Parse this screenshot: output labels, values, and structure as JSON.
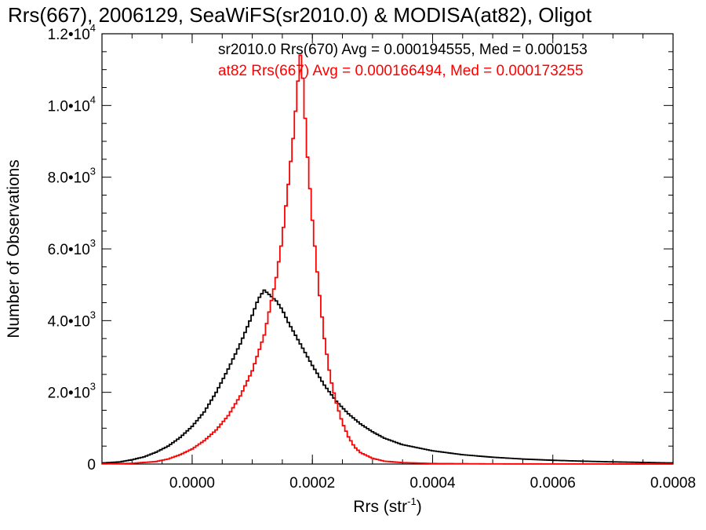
{
  "chart_data": {
    "type": "histogram",
    "title": "Rrs(667), 2006129, SeaWiFS(sr2010.0) & MODISA(at82), Oligot",
    "xlabel": "Rrs (str",
    "xlabel_sup": "-1",
    "xlabel_close": ")",
    "ylabel": "Number of Observations",
    "xlim": [
      -0.00015,
      0.0008
    ],
    "ylim": [
      0,
      12000
    ],
    "grid": false,
    "legend_placement": "top-right",
    "x_ticks": [
      {
        "value": 0.0,
        "label": "0.0000"
      },
      {
        "value": 0.0002,
        "label": "0.0002"
      },
      {
        "value": 0.0004,
        "label": "0.0004"
      },
      {
        "value": 0.0006,
        "label": "0.0006"
      },
      {
        "value": 0.0008,
        "label": "0.0008"
      }
    ],
    "y_ticks": [
      {
        "value": 0,
        "mant": "0",
        "exp": ""
      },
      {
        "value": 2000,
        "mant": "2.0•10",
        "exp": "3"
      },
      {
        "value": 4000,
        "mant": "4.0•10",
        "exp": "3"
      },
      {
        "value": 6000,
        "mant": "6.0•10",
        "exp": "3"
      },
      {
        "value": 8000,
        "mant": "8.0•10",
        "exp": "3"
      },
      {
        "value": 10000,
        "mant": "1.0•10",
        "exp": "4"
      },
      {
        "value": 12000,
        "mant": "1.2•10",
        "exp": "4"
      }
    ],
    "series": [
      {
        "legend": "sr2010.0 Rrs(670) Avg = 0.000194555, Med = 0.000153",
        "color": "#000000",
        "points": [
          [
            -0.00015,
            30
          ],
          [
            -0.00012,
            60
          ],
          [
            -0.0001,
            120
          ],
          [
            -8e-05,
            200
          ],
          [
            -6e-05,
            330
          ],
          [
            -4e-05,
            500
          ],
          [
            -2e-05,
            740
          ],
          [
            0.0,
            1050
          ],
          [
            2e-05,
            1450
          ],
          [
            4e-05,
            2000
          ],
          [
            6e-05,
            2650
          ],
          [
            8e-05,
            3350
          ],
          [
            0.0001,
            4150
          ],
          [
            0.00011,
            4600
          ],
          [
            0.00012,
            4850
          ],
          [
            0.00013,
            4700
          ],
          [
            0.00014,
            4550
          ],
          [
            0.00015,
            4300
          ],
          [
            0.00016,
            3950
          ],
          [
            0.00018,
            3350
          ],
          [
            0.0002,
            2750
          ],
          [
            0.00022,
            2200
          ],
          [
            0.00024,
            1750
          ],
          [
            0.00026,
            1400
          ],
          [
            0.00028,
            1120
          ],
          [
            0.0003,
            900
          ],
          [
            0.00032,
            720
          ],
          [
            0.00035,
            540
          ],
          [
            0.0004,
            370
          ],
          [
            0.00045,
            260
          ],
          [
            0.0005,
            190
          ],
          [
            0.00055,
            140
          ],
          [
            0.0006,
            105
          ],
          [
            0.00065,
            80
          ],
          [
            0.0007,
            60
          ],
          [
            0.00075,
            45
          ],
          [
            0.0008,
            30
          ]
        ]
      },
      {
        "legend": "at82 Rrs(667) Avg = 0.000166494, Med = 0.000173255",
        "color": "#ff0000",
        "points": [
          [
            -0.00015,
            5
          ],
          [
            -0.0001,
            20
          ],
          [
            -6e-05,
            70
          ],
          [
            -4e-05,
            140
          ],
          [
            -2e-05,
            260
          ],
          [
            0.0,
            420
          ],
          [
            2e-05,
            650
          ],
          [
            4e-05,
            950
          ],
          [
            6e-05,
            1350
          ],
          [
            8e-05,
            1900
          ],
          [
            0.0001,
            2600
          ],
          [
            0.00012,
            3600
          ],
          [
            0.00014,
            5200
          ],
          [
            0.00015,
            6300
          ],
          [
            0.00016,
            7800
          ],
          [
            0.00017,
            9400
          ],
          [
            0.000175,
            10500
          ],
          [
            0.00018,
            11400
          ],
          [
            0.000185,
            10600
          ],
          [
            0.00019,
            9000
          ],
          [
            0.0002,
            6800
          ],
          [
            0.00021,
            5000
          ],
          [
            0.00022,
            3500
          ],
          [
            0.00023,
            2400
          ],
          [
            0.00024,
            1700
          ],
          [
            0.00025,
            1150
          ],
          [
            0.00026,
            760
          ],
          [
            0.00027,
            480
          ],
          [
            0.00028,
            320
          ],
          [
            0.0003,
            160
          ],
          [
            0.00032,
            80
          ],
          [
            0.00035,
            40
          ],
          [
            0.0004,
            15
          ],
          [
            0.0005,
            5
          ],
          [
            0.0008,
            0
          ]
        ]
      }
    ]
  }
}
